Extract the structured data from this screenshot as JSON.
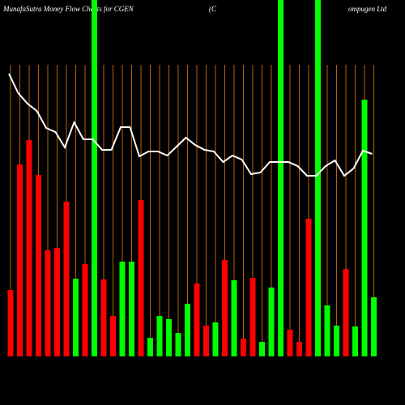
{
  "chart_data": {
    "type": "bar",
    "title": "MunafaSutra  Money Flow  Charts for CGEN",
    "subtitle": "(C",
    "subtitle2": "ompugen  Ltd",
    "ylim": [
      0,
      440
    ],
    "series": [
      {
        "type": "bar",
        "values": [
          82,
          237,
          267,
          224,
          131,
          134,
          191,
          96,
          114,
          440,
          95,
          50,
          117,
          117,
          193,
          23,
          50,
          46,
          29,
          65,
          90,
          38,
          42,
          119,
          94,
          22,
          97,
          18,
          85,
          440,
          33,
          18,
          170,
          440,
          63,
          38,
          108,
          37,
          317,
          73
        ],
        "colors": [
          "#ff0000",
          "#ff0000",
          "#ff0000",
          "#ff0000",
          "#ff0000",
          "#ff0000",
          "#ff0000",
          "#00ff00",
          "#ff0000",
          "#00ff00",
          "#ff0000",
          "#ff0000",
          "#00ff00",
          "#00ff00",
          "#ff0000",
          "#00ff00",
          "#00ff00",
          "#00ff00",
          "#00ff00",
          "#00ff00",
          "#ff0000",
          "#ff0000",
          "#00ff00",
          "#ff0000",
          "#00ff00",
          "#ff0000",
          "#ff0000",
          "#00ff00",
          "#00ff00",
          "#00ff00",
          "#ff0000",
          "#ff0000",
          "#ff0000",
          "#00ff00",
          "#00ff00",
          "#00ff00",
          "#ff0000",
          "#00ff00",
          "#00ff00",
          "#00ff00"
        ]
      },
      {
        "type": "line",
        "color": "#ffffff",
        "values": [
          349,
          325,
          312,
          303,
          282,
          277,
          258,
          289,
          268,
          268,
          255,
          255,
          283,
          283,
          247,
          253,
          253,
          248,
          259,
          270,
          261,
          255,
          253,
          240,
          248,
          243,
          225,
          227,
          240,
          240,
          240,
          235,
          223,
          223,
          235,
          242,
          223,
          232,
          254,
          250
        ]
      }
    ]
  }
}
